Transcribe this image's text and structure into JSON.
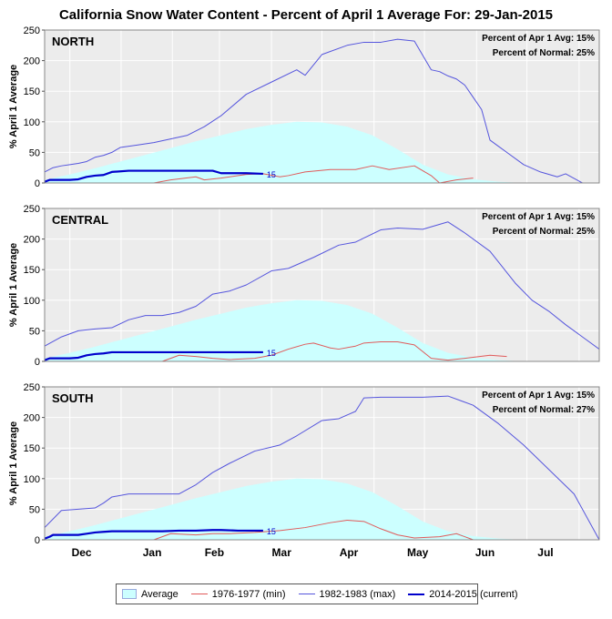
{
  "title": "California Snow Water Content - Percent of April 1 Average For: 29-Jan-2015",
  "colors": {
    "average_fill": "#ccffff",
    "min": "#e05a5a",
    "max": "#5555dd",
    "current": "#0000cc",
    "plot_bg": "#ececec",
    "grid": "#ffffff"
  },
  "legend": {
    "items": [
      {
        "key": "average",
        "label": "Average"
      },
      {
        "key": "min",
        "label": "1976-1977 (min)"
      },
      {
        "key": "max",
        "label": "1982-1983 (max)"
      },
      {
        "key": "current",
        "label": "2014-2015 (current)"
      }
    ]
  },
  "chart_data": [
    {
      "type": "area",
      "region": "NORTH",
      "ylabel": "% April 1 Average",
      "ylim": [
        0,
        250
      ],
      "yticks": [
        0,
        50,
        100,
        150,
        200,
        250
      ],
      "xtick_labels": [
        "Dec",
        "Jan",
        "Feb",
        "Mar",
        "Apr",
        "May",
        "Jun",
        "Jul"
      ],
      "grid": true,
      "annotation_lines": [
        "Percent of Apr 1 Avg: 15%",
        "Percent of Normal: 25%"
      ],
      "current_end_label": "15",
      "series": [
        {
          "key": "average",
          "name": "Average",
          "x": [
            0,
            15,
            30,
            45,
            60,
            75,
            90,
            105,
            120,
            135,
            150,
            165,
            180,
            195,
            210,
            225,
            240,
            255,
            270,
            285
          ],
          "y": [
            5,
            14,
            24,
            35,
            46,
            57,
            68,
            78,
            88,
            95,
            100,
            99,
            92,
            78,
            55,
            30,
            14,
            6,
            2,
            0
          ]
        },
        {
          "key": "min",
          "name": "1976-1977 (min)",
          "x": [
            65,
            75,
            90,
            95,
            105,
            120,
            130,
            140,
            145,
            155,
            170,
            185,
            195,
            205,
            220,
            230,
            235,
            245,
            255
          ],
          "y": [
            0,
            5,
            10,
            5,
            8,
            14,
            15,
            10,
            12,
            18,
            22,
            22,
            28,
            22,
            28,
            12,
            0,
            5,
            8
          ]
        },
        {
          "key": "max",
          "name": "1982-1983 (max)",
          "x": [
            0,
            5,
            10,
            15,
            20,
            25,
            30,
            35,
            40,
            45,
            55,
            65,
            75,
            85,
            95,
            105,
            120,
            135,
            150,
            155,
            165,
            180,
            190,
            200,
            210,
            220,
            230,
            235,
            240,
            245,
            250,
            255,
            260,
            265,
            270,
            275,
            285,
            295,
            305,
            310,
            320
          ],
          "y": [
            18,
            25,
            28,
            30,
            32,
            35,
            42,
            45,
            50,
            58,
            62,
            66,
            72,
            78,
            92,
            110,
            145,
            165,
            185,
            176,
            210,
            225,
            230,
            230,
            235,
            232,
            185,
            182,
            175,
            170,
            160,
            140,
            120,
            70,
            60,
            50,
            30,
            18,
            10,
            15,
            0
          ]
        },
        {
          "key": "current",
          "name": "2014-2015 (current)",
          "x": [
            0,
            3,
            5,
            15,
            20,
            25,
            30,
            35,
            40,
            50,
            60,
            70,
            80,
            90,
            100,
            105,
            115,
            120,
            130
          ],
          "y": [
            2,
            5,
            5,
            5,
            6,
            10,
            12,
            13,
            18,
            20,
            20,
            20,
            20,
            20,
            20,
            16,
            16,
            16,
            15
          ]
        }
      ]
    },
    {
      "type": "area",
      "region": "CENTRAL",
      "ylabel": "% April 1 Average",
      "ylim": [
        0,
        250
      ],
      "yticks": [
        0,
        50,
        100,
        150,
        200,
        250
      ],
      "xtick_labels": [
        "Dec",
        "Jan",
        "Feb",
        "Mar",
        "Apr",
        "May",
        "Jun",
        "Jul"
      ],
      "grid": true,
      "annotation_lines": [
        "Percent of Apr 1 Avg: 15%",
        "Percent of Normal: 25%"
      ],
      "current_end_label": "15",
      "series": [
        {
          "key": "average",
          "name": "Average",
          "x": [
            0,
            15,
            30,
            45,
            60,
            75,
            90,
            105,
            120,
            135,
            150,
            165,
            180,
            195,
            210,
            225,
            240,
            255,
            270,
            285
          ],
          "y": [
            5,
            14,
            24,
            35,
            46,
            57,
            68,
            78,
            88,
            95,
            100,
            99,
            92,
            78,
            55,
            30,
            14,
            6,
            2,
            0
          ]
        },
        {
          "key": "min",
          "name": "1976-1977 (min)",
          "x": [
            70,
            80,
            90,
            100,
            110,
            125,
            135,
            145,
            155,
            160,
            170,
            175,
            185,
            190,
            200,
            210,
            220,
            230,
            240,
            250,
            265,
            275
          ],
          "y": [
            0,
            10,
            8,
            5,
            3,
            5,
            10,
            20,
            28,
            30,
            22,
            20,
            25,
            30,
            32,
            32,
            27,
            5,
            2,
            5,
            10,
            8
          ]
        },
        {
          "key": "max",
          "name": "1982-1983 (max)",
          "x": [
            0,
            10,
            20,
            30,
            40,
            50,
            60,
            70,
            80,
            90,
            100,
            110,
            120,
            135,
            145,
            160,
            175,
            185,
            200,
            210,
            225,
            240,
            250,
            265,
            280,
            290,
            300,
            310,
            330
          ],
          "y": [
            25,
            40,
            50,
            53,
            55,
            68,
            75,
            75,
            80,
            90,
            110,
            115,
            125,
            148,
            152,
            170,
            190,
            195,
            215,
            218,
            216,
            228,
            210,
            180,
            128,
            100,
            82,
            60,
            20
          ]
        },
        {
          "key": "current",
          "name": "2014-2015 (current)",
          "x": [
            0,
            3,
            5,
            15,
            20,
            25,
            30,
            35,
            40,
            50,
            60,
            70,
            80,
            90,
            100,
            105,
            115,
            120,
            130
          ],
          "y": [
            2,
            5,
            5,
            5,
            6,
            10,
            12,
            13,
            15,
            15,
            15,
            15,
            15,
            15,
            15,
            15,
            15,
            15,
            15
          ]
        }
      ]
    },
    {
      "type": "area",
      "region": "SOUTH",
      "ylabel": "% April 1 Average",
      "ylim": [
        0,
        250
      ],
      "yticks": [
        0,
        50,
        100,
        150,
        200,
        250
      ],
      "xtick_labels": [
        "Dec",
        "Jan",
        "Feb",
        "Mar",
        "Apr",
        "May",
        "Jun",
        "Jul"
      ],
      "grid": true,
      "annotation_lines": [
        "Percent of Apr 1 Avg: 15%",
        "Percent of Normal: 27%"
      ],
      "current_end_label": "15",
      "series": [
        {
          "key": "average",
          "name": "Average",
          "x": [
            0,
            15,
            30,
            45,
            60,
            75,
            90,
            105,
            120,
            135,
            150,
            165,
            180,
            195,
            210,
            225,
            240,
            255,
            270,
            285
          ],
          "y": [
            5,
            14,
            24,
            35,
            46,
            57,
            68,
            78,
            88,
            95,
            100,
            99,
            92,
            78,
            55,
            30,
            14,
            6,
            2,
            0
          ]
        },
        {
          "key": "min",
          "name": "1976-1977 (min)",
          "x": [
            65,
            75,
            90,
            100,
            110,
            125,
            140,
            155,
            170,
            180,
            190,
            200,
            210,
            220,
            235,
            245,
            255
          ],
          "y": [
            0,
            10,
            8,
            10,
            10,
            12,
            15,
            20,
            28,
            32,
            30,
            18,
            8,
            3,
            5,
            10,
            0
          ]
        },
        {
          "key": "max",
          "name": "1982-1983 (max)",
          "x": [
            0,
            10,
            20,
            30,
            35,
            40,
            50,
            60,
            70,
            80,
            90,
            100,
            110,
            125,
            140,
            150,
            165,
            175,
            185,
            190,
            200,
            210,
            225,
            240,
            255,
            270,
            285,
            300,
            315,
            330
          ],
          "y": [
            20,
            48,
            50,
            52,
            60,
            70,
            75,
            75,
            75,
            75,
            90,
            110,
            125,
            145,
            155,
            170,
            195,
            198,
            210,
            232,
            233,
            233,
            233,
            235,
            220,
            190,
            155,
            115,
            75,
            0
          ]
        },
        {
          "key": "current",
          "name": "2014-2015 (current)",
          "x": [
            0,
            3,
            5,
            15,
            20,
            25,
            30,
            35,
            40,
            50,
            60,
            70,
            80,
            90,
            100,
            105,
            115,
            120,
            130
          ],
          "y": [
            2,
            5,
            8,
            8,
            8,
            10,
            12,
            13,
            14,
            14,
            14,
            14,
            15,
            15,
            16,
            16,
            15,
            15,
            15
          ]
        }
      ]
    }
  ]
}
